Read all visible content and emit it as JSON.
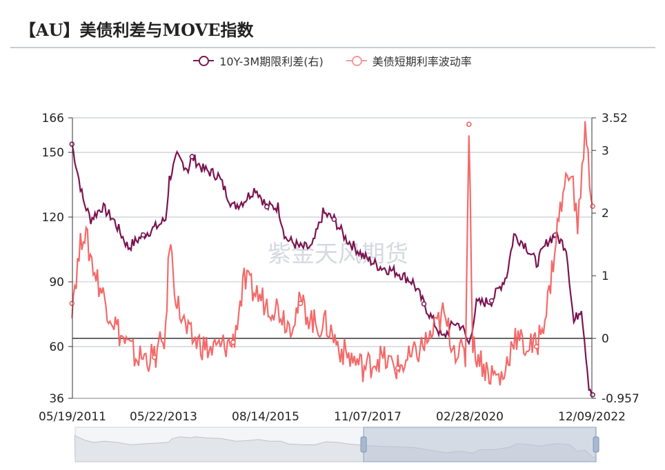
{
  "title": "【AU】美债利差与MOVE指数",
  "watermark": "紫金天风期货",
  "colors": {
    "spread": "#7a1450",
    "move": "#f25a5a",
    "grid": "#c8ccd6",
    "zero_line": "#333333"
  },
  "chart_data": {
    "type": "line",
    "legend_placement": "top",
    "grid": true,
    "x_ticks": [
      "05/19/2011",
      "05/22/2013",
      "08/14/2015",
      "11/07/2017",
      "02/28/2020",
      "12/09/2022"
    ],
    "xlim": [
      "2011-05-19",
      "2022-12-09"
    ],
    "y_left": {
      "ticks": [
        "166",
        "150",
        "120",
        "90",
        "60",
        "36"
      ],
      "range": [
        36,
        166
      ]
    },
    "y_right": {
      "ticks": [
        "3.52",
        "3",
        "2",
        "1",
        "0",
        "-0.957"
      ],
      "range": [
        -0.957,
        3.52
      ]
    },
    "series": [
      {
        "name": "10Y-3M期限利差(右)",
        "axis": "right",
        "color": "#7a1450",
        "points": [
          [
            "2011-05",
            3.1
          ],
          [
            "2011-08",
            2.2
          ],
          [
            "2011-10",
            1.9
          ],
          [
            "2012-01",
            2.1
          ],
          [
            "2012-04",
            1.9
          ],
          [
            "2012-08",
            1.45
          ],
          [
            "2012-12",
            1.65
          ],
          [
            "2013-04",
            1.8
          ],
          [
            "2013-06",
            1.9
          ],
          [
            "2013-07",
            2.55
          ],
          [
            "2013-09",
            2.9
          ],
          [
            "2013-12",
            2.7
          ],
          [
            "2014-01",
            2.9
          ],
          [
            "2014-04",
            2.7
          ],
          [
            "2014-08",
            2.6
          ],
          [
            "2014-12",
            2.1
          ],
          [
            "2015-03",
            2.2
          ],
          [
            "2015-06",
            2.4
          ],
          [
            "2015-09",
            2.1
          ],
          [
            "2015-12",
            2.1
          ],
          [
            "2016-02",
            1.6
          ],
          [
            "2016-06",
            1.45
          ],
          [
            "2016-09",
            1.45
          ],
          [
            "2016-12",
            2.0
          ],
          [
            "2017-03",
            1.9
          ],
          [
            "2017-06",
            1.6
          ],
          [
            "2017-11",
            1.3
          ],
          [
            "2018-03",
            1.15
          ],
          [
            "2018-08",
            1.05
          ],
          [
            "2018-12",
            0.9
          ],
          [
            "2019-03",
            0.55
          ],
          [
            "2019-08",
            0.0
          ],
          [
            "2019-11",
            0.25
          ],
          [
            "2020-01",
            0.2
          ],
          [
            "2020-03",
            -0.1
          ],
          [
            "2020-05",
            0.55
          ],
          [
            "2020-09",
            0.6
          ],
          [
            "2021-01",
            1.0
          ],
          [
            "2021-03",
            1.65
          ],
          [
            "2021-06",
            1.5
          ],
          [
            "2021-09",
            1.2
          ],
          [
            "2021-12",
            1.55
          ],
          [
            "2022-02",
            1.65
          ],
          [
            "2022-05",
            1.45
          ],
          [
            "2022-07",
            0.25
          ],
          [
            "2022-09",
            0.5
          ],
          [
            "2022-11",
            -0.75
          ],
          [
            "2022-12",
            -0.9
          ]
        ]
      },
      {
        "name": "美债短期利率波动率",
        "axis": "left",
        "color": "#f25a5a",
        "points": [
          [
            "2011-05",
            80
          ],
          [
            "2011-08",
            115
          ],
          [
            "2011-11",
            95
          ],
          [
            "2012-02",
            80
          ],
          [
            "2012-06",
            65
          ],
          [
            "2012-10",
            55
          ],
          [
            "2013-03",
            55
          ],
          [
            "2013-06",
            65
          ],
          [
            "2013-07",
            110
          ],
          [
            "2013-09",
            80
          ],
          [
            "2013-12",
            65
          ],
          [
            "2014-06",
            58
          ],
          [
            "2014-12",
            62
          ],
          [
            "2015-03",
            90
          ],
          [
            "2015-06",
            85
          ],
          [
            "2015-09",
            80
          ],
          [
            "2015-12",
            78
          ],
          [
            "2016-03",
            70
          ],
          [
            "2016-06",
            80
          ],
          [
            "2016-10",
            70
          ],
          [
            "2017-01",
            70
          ],
          [
            "2017-05",
            58
          ],
          [
            "2017-11",
            50
          ],
          [
            "2018-03",
            55
          ],
          [
            "2018-08",
            50
          ],
          [
            "2018-12",
            55
          ],
          [
            "2019-05",
            65
          ],
          [
            "2019-08",
            75
          ],
          [
            "2019-11",
            60
          ],
          [
            "2020-02",
            55
          ],
          [
            "2020-03",
            163
          ],
          [
            "2020-04",
            60
          ],
          [
            "2020-08",
            48
          ],
          [
            "2020-12",
            45
          ],
          [
            "2021-03",
            65
          ],
          [
            "2021-06",
            60
          ],
          [
            "2021-09",
            60
          ],
          [
            "2021-12",
            80
          ],
          [
            "2022-03",
            120
          ],
          [
            "2022-06",
            145
          ],
          [
            "2022-08",
            115
          ],
          [
            "2022-10",
            160
          ],
          [
            "2022-12",
            125
          ]
        ]
      }
    ],
    "data_zoom": {
      "start": "2017-10",
      "end": "2022-12"
    }
  }
}
